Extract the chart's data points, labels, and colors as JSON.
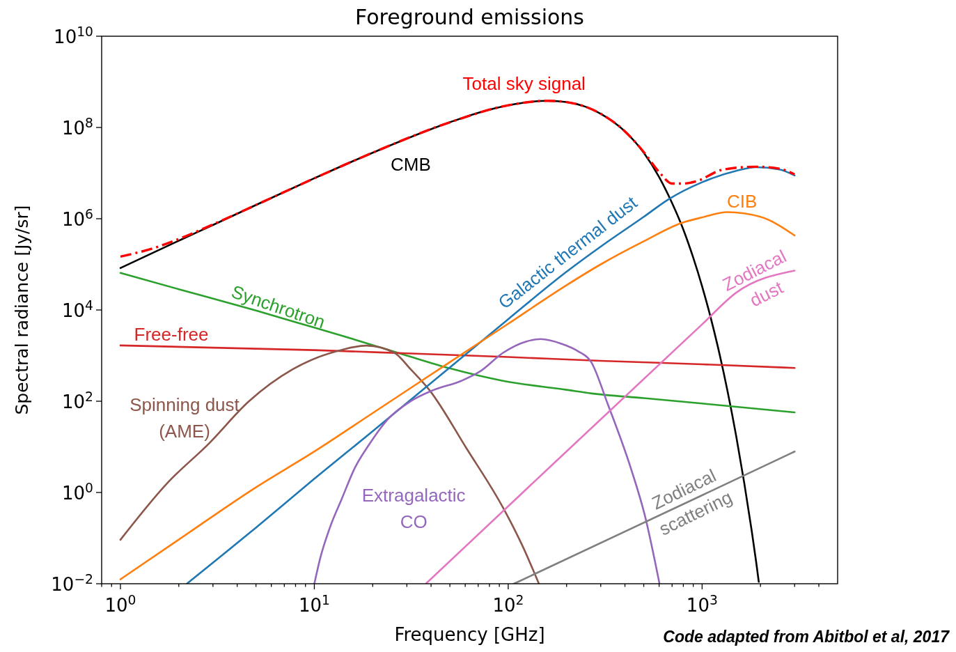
{
  "chart_data": {
    "type": "line",
    "title": "Foreground emissions",
    "xlabel": "Frequency [GHz]",
    "ylabel": "Spectral radiance [Jy/sr]",
    "annotations": [
      "Code adapted from Abitbol et al, 2017"
    ],
    "log": "xy",
    "line_style": "solid",
    "xlim": [
      0.8,
      5000
    ],
    "ylim": [
      0.01,
      10000000000
    ],
    "xticks": [
      {
        "value": 0.8,
        "label": null
      },
      {
        "value": 0.9,
        "label": null
      },
      {
        "value": 1,
        "label": "10$^{0}$"
      },
      {
        "value": 2,
        "label": null
      },
      {
        "value": 3,
        "label": null
      },
      {
        "value": 4,
        "label": null
      },
      {
        "value": 5,
        "label": null
      },
      {
        "value": 6,
        "label": null
      },
      {
        "value": 7,
        "label": null
      },
      {
        "value": 8,
        "label": null
      },
      {
        "value": 9,
        "label": null
      },
      {
        "value": 10,
        "label": "10$^{1}$"
      },
      {
        "value": 20,
        "label": null
      },
      {
        "value": 30,
        "label": null
      },
      {
        "value": 40,
        "label": null
      },
      {
        "value": 50,
        "label": null
      },
      {
        "value": 60,
        "label": null
      },
      {
        "value": 70,
        "label": null
      },
      {
        "value": 80,
        "label": null
      },
      {
        "value": 90,
        "label": null
      },
      {
        "value": 100,
        "label": "10$^{2}$"
      },
      {
        "value": 200,
        "label": null
      },
      {
        "value": 300,
        "label": null
      },
      {
        "value": 400,
        "label": null
      },
      {
        "value": 500,
        "label": null
      },
      {
        "value": 600,
        "label": null
      },
      {
        "value": 700,
        "label": null
      },
      {
        "value": 800,
        "label": null
      },
      {
        "value": 900,
        "label": null
      },
      {
        "value": 1000,
        "label": "10$^{3}$"
      },
      {
        "value": 2000,
        "label": null
      },
      {
        "value": 3000,
        "label": null
      },
      {
        "value": 4000,
        "label": null
      }
    ],
    "yticks": [
      {
        "value": 0.01,
        "label": "10$^{−2}$"
      },
      {
        "value": 1,
        "label": "10$^{0}$"
      },
      {
        "value": 100,
        "label": "10$^{2}$"
      },
      {
        "value": 10000,
        "label": "10$^{4}$"
      },
      {
        "value": 1000000,
        "label": "10$^{6}$"
      },
      {
        "value": 100000000,
        "label": "10$^{8}$"
      },
      {
        "value": 10000000000,
        "label": "10$^{10}$"
      }
    ],
    "series": [
      {
        "name": "CMB",
        "color": "#000000",
        "x": [
          1,
          2,
          3,
          5,
          10,
          20,
          50,
          70,
          100,
          130,
          160,
          200,
          250,
          300,
          400,
          500,
          600,
          700,
          800,
          900,
          1000,
          1100,
          1200,
          1350,
          1500,
          1650,
          1800,
          1900,
          1960
        ],
        "values": [
          83000,
          330000,
          730000,
          2000000,
          7700000,
          28000000,
          130000000,
          210000000,
          306000000,
          365000000,
          384000000,
          360000000,
          286000000,
          200000000,
          82000000,
          28000000,
          8200000,
          2200000,
          580000,
          140000,
          33000,
          7600,
          1700,
          173,
          17,
          1.6,
          0.15,
          0.03,
          0.011
        ]
      },
      {
        "name": "Synchrotron",
        "color": "#2ca02c",
        "x": [
          1,
          2,
          5,
          10,
          13.8,
          20,
          30,
          50,
          94,
          200,
          270,
          500,
          1000,
          3000
        ],
        "values": [
          65000,
          28500,
          9700,
          4100,
          2750,
          1700,
          1000,
          525,
          280,
          178,
          148,
          117,
          89,
          57
        ]
      },
      {
        "name": "Free-free",
        "color": "#d62728",
        "x": [
          1,
          10,
          30,
          100,
          300,
          1000,
          3000
        ],
        "values": [
          1670,
          1320,
          1120,
          930,
          770,
          645,
          536
        ]
      },
      {
        "name": "Spinning dust (AME)",
        "color": "#8c564b",
        "x": [
          1,
          1.75,
          2.87,
          4.58,
          7.73,
          14.1,
          18.6,
          25.9,
          31.4,
          39.2,
          60.8,
          94.4,
          118,
          144
        ],
        "values": [
          0.092,
          1.63,
          12,
          98,
          500,
          1365,
          1660,
          1150,
          500,
          176,
          9.4,
          0.45,
          0.07,
          0.01
        ]
      },
      {
        "name": "Galactic thermal dust",
        "color": "#1f77b4",
        "x": [
          2.2,
          5,
          10,
          20,
          50,
          100,
          200,
          300,
          500,
          665,
          1000,
          1500,
          1890,
          2500,
          3000
        ],
        "values": [
          0.01,
          0.17,
          2,
          22,
          550,
          6300,
          69000,
          245000,
          1100000,
          2600000,
          6300000,
          11200000,
          13500000,
          12000000,
          8900000
        ]
      },
      {
        "name": "CIB",
        "color": "#ff7f0e",
        "x": [
          1,
          2,
          5,
          10,
          20,
          50,
          100,
          200,
          300,
          500,
          785,
          1000,
          1350,
          2000,
          3000
        ],
        "values": [
          0.0125,
          0.093,
          1.3,
          7.9,
          55,
          720,
          5000,
          35000,
          100000,
          320000,
          810000,
          1070000,
          1400000,
          1100000,
          430000
        ]
      },
      {
        "name": "Extragalactic CO",
        "color": "#9467bd",
        "x": [
          10,
          10.7,
          12.2,
          13.8,
          16.2,
          19.1,
          23.9,
          31.4,
          41.2,
          57.3,
          71.6,
          94,
          124,
          147,
          188,
          228,
          268,
          325,
          430,
          506,
          603
        ],
        "values": [
          0.01,
          0.035,
          0.2,
          0.7,
          3.5,
          11,
          40,
          100,
          176,
          280,
          450,
          1150,
          2040,
          2300,
          1820,
          1260,
          720,
          90,
          3.3,
          0.32,
          0.01
        ]
      },
      {
        "name": "Zodiacal dust",
        "color": "#e377c2",
        "x": [
          37.6,
          100,
          1000,
          1500,
          3000
        ],
        "values": [
          0.01,
          0.5,
          4850,
          24000,
          73000
        ]
      },
      {
        "name": "Zodiacal scattering",
        "color": "#7f7f7f",
        "x": [
          107,
          1000,
          3000
        ],
        "values": [
          0.01,
          0.87,
          7.9
        ]
      },
      {
        "name": "Total sky signal",
        "color": "#ff0000",
        "line_style": "dashdot",
        "x": [
          1,
          1.5,
          2,
          3,
          5,
          10,
          20,
          50,
          100,
          160,
          200,
          300,
          400,
          500,
          600,
          700,
          800,
          930,
          1290,
          1890,
          2500,
          3000
        ],
        "values": [
          148000,
          230000,
          360000,
          750000,
          2000000,
          7700000,
          28000000,
          130000000,
          306000000,
          384000000,
          360000000,
          200000000,
          82000000,
          29000000,
          10600000,
          5900000,
          5900000,
          6600000,
          12000000,
          13800000,
          12500000,
          9400000
        ]
      }
    ]
  }
}
